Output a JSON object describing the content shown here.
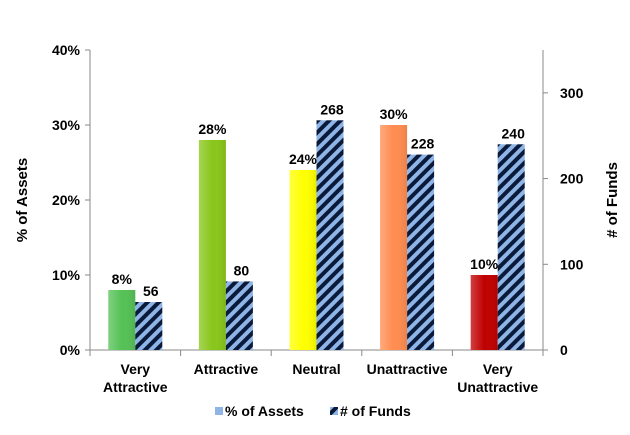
{
  "chart_data": {
    "type": "bar",
    "categories": [
      "Very Attractive",
      "Attractive",
      "Neutral",
      "Unattractive",
      "Very Unattractive"
    ],
    "category_lines": [
      [
        "Very",
        "Attractive"
      ],
      [
        "Attractive"
      ],
      [
        "Neutral"
      ],
      [
        "Unattractive"
      ],
      [
        "Very",
        "Unattractive"
      ]
    ],
    "series": [
      {
        "name": "% of Assets",
        "axis": "left",
        "values": [
          8,
          28,
          24,
          30,
          10
        ],
        "labels": [
          "8%",
          "28%",
          "24%",
          "30%",
          "10%"
        ],
        "colors": [
          "#55c155",
          "#88c61a",
          "#ffff00",
          "#ff8c50",
          "#c00000"
        ]
      },
      {
        "name": "# of Funds",
        "axis": "right",
        "values": [
          56,
          80,
          268,
          228,
          240
        ],
        "labels": [
          "56",
          "80",
          "268",
          "228",
          "240"
        ],
        "pattern": "diagonal-stripes",
        "colors": [
          "#0a1a3a",
          "#8fb4e6"
        ]
      }
    ],
    "ylabel": "% of Assets",
    "y2label": "# of Funds",
    "ylim": [
      0,
      40
    ],
    "y2lim": [
      0,
      350
    ],
    "yticks": [
      "0%",
      "10%",
      "20%",
      "30%",
      "40%"
    ],
    "y2ticks": [
      "0",
      "100",
      "200",
      "300"
    ],
    "legend": "bottom",
    "grid": false
  },
  "legend_items": [
    {
      "label": "% of Assets",
      "swatch": "#8fb4e6"
    },
    {
      "label": "# of Funds",
      "swatch": "stripes"
    }
  ]
}
